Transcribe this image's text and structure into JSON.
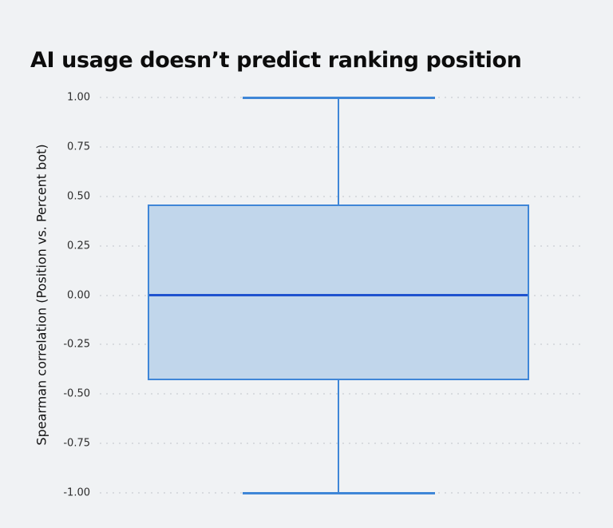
{
  "page": {
    "background": "#f0f2f4"
  },
  "header": {
    "title": "AI usage doesn’t predict ranking position"
  },
  "chart_data": {
    "type": "box",
    "title": "AI usage doesn’t predict ranking position",
    "xlabel": "",
    "ylabel": "Spearman correlation (Position vs. Percent bot)",
    "ylim": [
      -1.0,
      1.0
    ],
    "yticks": [
      "1.00",
      "0.75",
      "0.50",
      "0.25",
      "0.00",
      "-0.25",
      "-0.50",
      "-0.75",
      "-1.00"
    ],
    "grid": "horizontal-dotted",
    "legend": "none",
    "series": [
      {
        "name": "Spearman correlation (Position vs. Percent bot)",
        "whisker_high": 1.0,
        "q3": 0.46,
        "median": 0.0,
        "q1": -0.43,
        "whisker_low": -1.0,
        "outliers": []
      }
    ],
    "colors": {
      "box_fill": "#c1d6eb",
      "box_border": "#3f86d7",
      "median": "#1f52cf",
      "grid_dot": "#d8dbdf",
      "background": "#f0f2f4",
      "title_text": "#0c0c0c",
      "tick_text": "#2d2d2d"
    }
  }
}
